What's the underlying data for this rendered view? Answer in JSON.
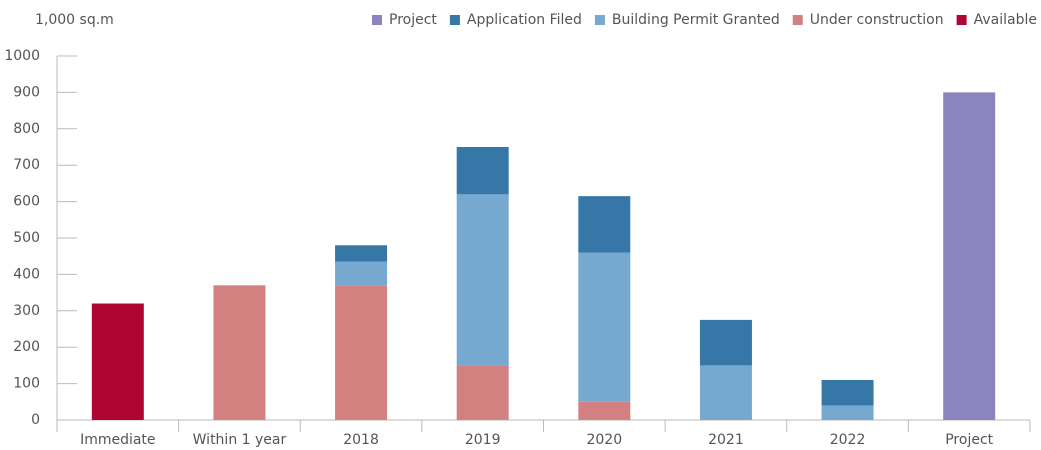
{
  "chart_data": {
    "type": "stacked_bar",
    "y_axis_label": "1,000 sq.m",
    "categories": [
      "Immediate",
      "Within 1 year",
      "2018",
      "2019",
      "2020",
      "2021",
      "2022",
      "Project"
    ],
    "series": [
      {
        "name": "Project",
        "color": "#8b84be",
        "values": [
          null,
          null,
          null,
          null,
          null,
          null,
          null,
          900
        ]
      },
      {
        "name": "Application Filed",
        "color": "#3677a8",
        "values": [
          null,
          null,
          45,
          130,
          155,
          125,
          70,
          null
        ]
      },
      {
        "name": "Building Permit Granted",
        "color": "#75a9cf",
        "values": [
          null,
          null,
          65,
          470,
          410,
          150,
          40,
          null
        ]
      },
      {
        "name": "Under construction",
        "color": "#d38080",
        "values": [
          null,
          370,
          370,
          150,
          50,
          null,
          null,
          null
        ]
      },
      {
        "name": "Available",
        "color": "#ae0533",
        "values": [
          320,
          null,
          null,
          null,
          null,
          null,
          null,
          null
        ]
      }
    ],
    "ylim": [
      0,
      1000
    ],
    "yticks": [
      0,
      100,
      200,
      300,
      400,
      500,
      600,
      700,
      800,
      900,
      1000
    ],
    "legend": "top-right"
  }
}
